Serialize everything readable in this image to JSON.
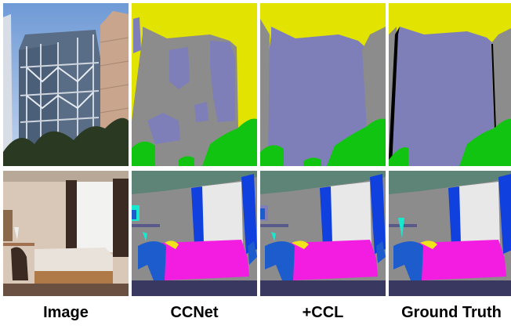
{
  "captions": [
    "Image",
    "CCNet",
    "+CCL",
    "Ground Truth"
  ],
  "palette": {
    "sky": "#e3e300",
    "building": "#7e7eb8",
    "wall": "#8c8c8c",
    "tree": "#12c412",
    "ceiling": "#5e8478",
    "window": "#e8e8e8",
    "curtain": "#1040dd",
    "bed": "#f21de0",
    "floor": "#383860",
    "chair": "#1c5ccc",
    "lamp": "#18e8d0",
    "pillow": "#f2e41a",
    "void": "#000000"
  }
}
